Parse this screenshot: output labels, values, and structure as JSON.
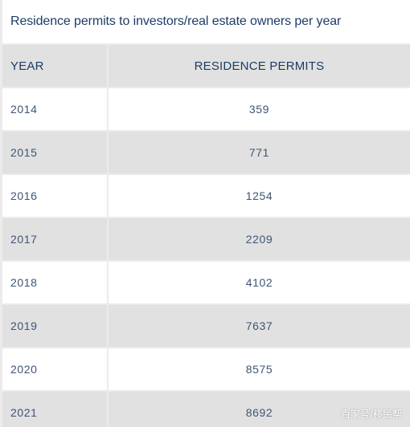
{
  "caption": "Residence permits to investors/real estate owners per year",
  "table": {
    "headers": [
      "YEAR",
      "RESIDENCE PERMITS"
    ],
    "rows": [
      [
        "2014",
        "359"
      ],
      [
        "2015",
        "771"
      ],
      [
        "2016",
        "1254"
      ],
      [
        "2017",
        "2209"
      ],
      [
        "2018",
        "4102"
      ],
      [
        "2019",
        "7637"
      ],
      [
        "2020",
        "8575"
      ],
      [
        "2021",
        "8692"
      ]
    ]
  },
  "chart_data": {
    "type": "table",
    "title": "Residence permits to investors/real estate owners per year",
    "columns": [
      "YEAR",
      "RESIDENCE PERMITS"
    ],
    "categories": [
      "2014",
      "2015",
      "2016",
      "2017",
      "2018",
      "2019",
      "2020",
      "2021"
    ],
    "values": [
      359,
      771,
      1254,
      2209,
      4102,
      7637,
      8575,
      8692
    ]
  },
  "watermark": "百家号/移民帮",
  "colors": {
    "text_dark": "#1c3c66",
    "text_body": "#3e5574",
    "row_shade": "#e1e1e1",
    "row_white": "#ffffff",
    "gap": "#ebebeb"
  }
}
